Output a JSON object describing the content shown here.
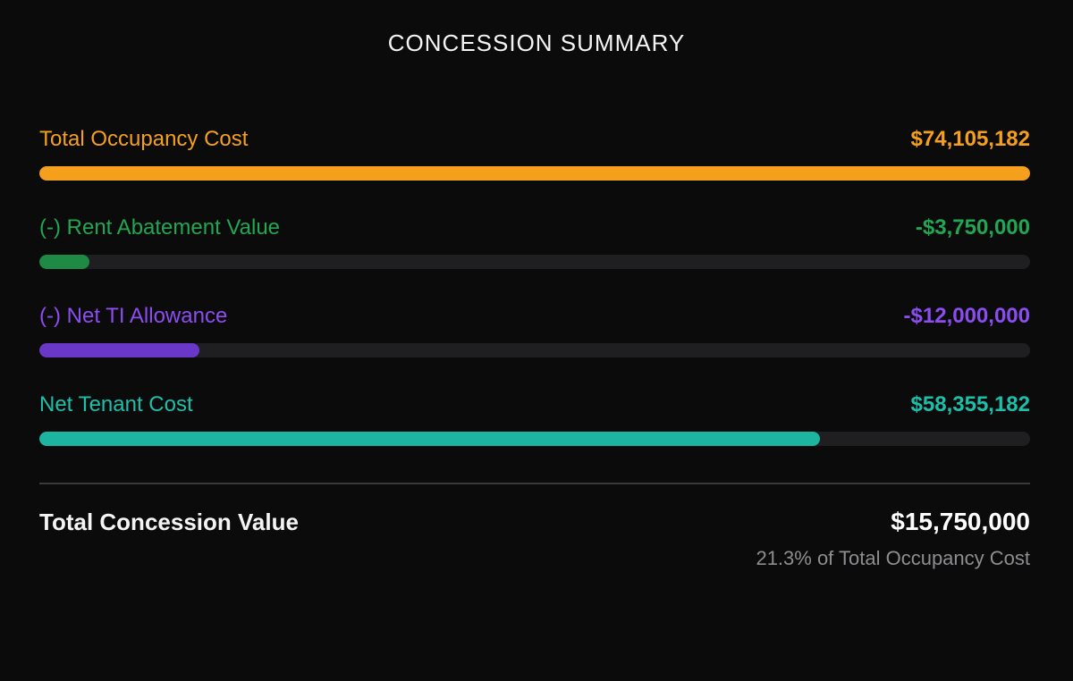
{
  "title": "CONCESSION SUMMARY",
  "rows": [
    {
      "label": "Total Occupancy Cost",
      "value": "$74,105,182",
      "color": "#f5a01d",
      "fill_color": "#f5a01d",
      "fraction": 1.0
    },
    {
      "label": "(-) Rent Abatement Value",
      "value": "-$3,750,000",
      "color": "#22a652",
      "fill_color": "#1e8a44",
      "fraction": 0.0506
    },
    {
      "label": "(-) Net TI Allowance",
      "value": "-$12,000,000",
      "color": "#8b4df0",
      "fill_color": "#6a38c8",
      "fraction": 0.1619
    },
    {
      "label": "Net Tenant Cost",
      "value": "$58,355,182",
      "color": "#1cbfa8",
      "fill_color": "#1cb5a2",
      "fraction": 0.7875
    }
  ],
  "total": {
    "label": "Total Concession Value",
    "value": "$15,750,000",
    "note": "21.3% of Total Occupancy Cost"
  }
}
